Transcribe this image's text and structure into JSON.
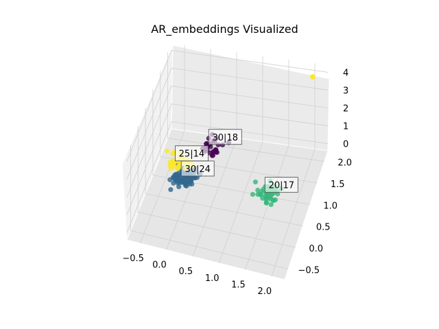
{
  "chart_data": {
    "type": "scatter",
    "projection": "3d",
    "title": "AR_embeddings Visualized",
    "grid": true,
    "x_ticks": [
      "−0.5",
      "0.0",
      "0.5",
      "1.0",
      "1.5",
      "2.0"
    ],
    "y_ticks": [
      "−0.5",
      "0.0",
      "0.5",
      "1.0",
      "1.5",
      "2.0"
    ],
    "z_ticks": [
      "0",
      "1",
      "2",
      "3",
      "4"
    ],
    "colormap": "viridis",
    "clusters": [
      {
        "label": "30|18",
        "color": "#440154",
        "center": [
          0.2,
          1.6,
          0.3
        ],
        "count": 28
      },
      {
        "label": "30|24",
        "color": "#31688e",
        "center": [
          -0.1,
          0.8,
          0.1
        ],
        "count": 90
      },
      {
        "label": "20|17",
        "color": "#35b779",
        "center": [
          1.5,
          0.8,
          0.1
        ],
        "count": 45
      },
      {
        "label": "25|14",
        "color": "#fde725",
        "center": [
          -0.3,
          1.1,
          0.2
        ],
        "count": 35
      }
    ],
    "outliers": [
      {
        "color": "#fde725",
        "x": 2.0,
        "y": 2.1,
        "z": 4.0
      }
    ]
  }
}
